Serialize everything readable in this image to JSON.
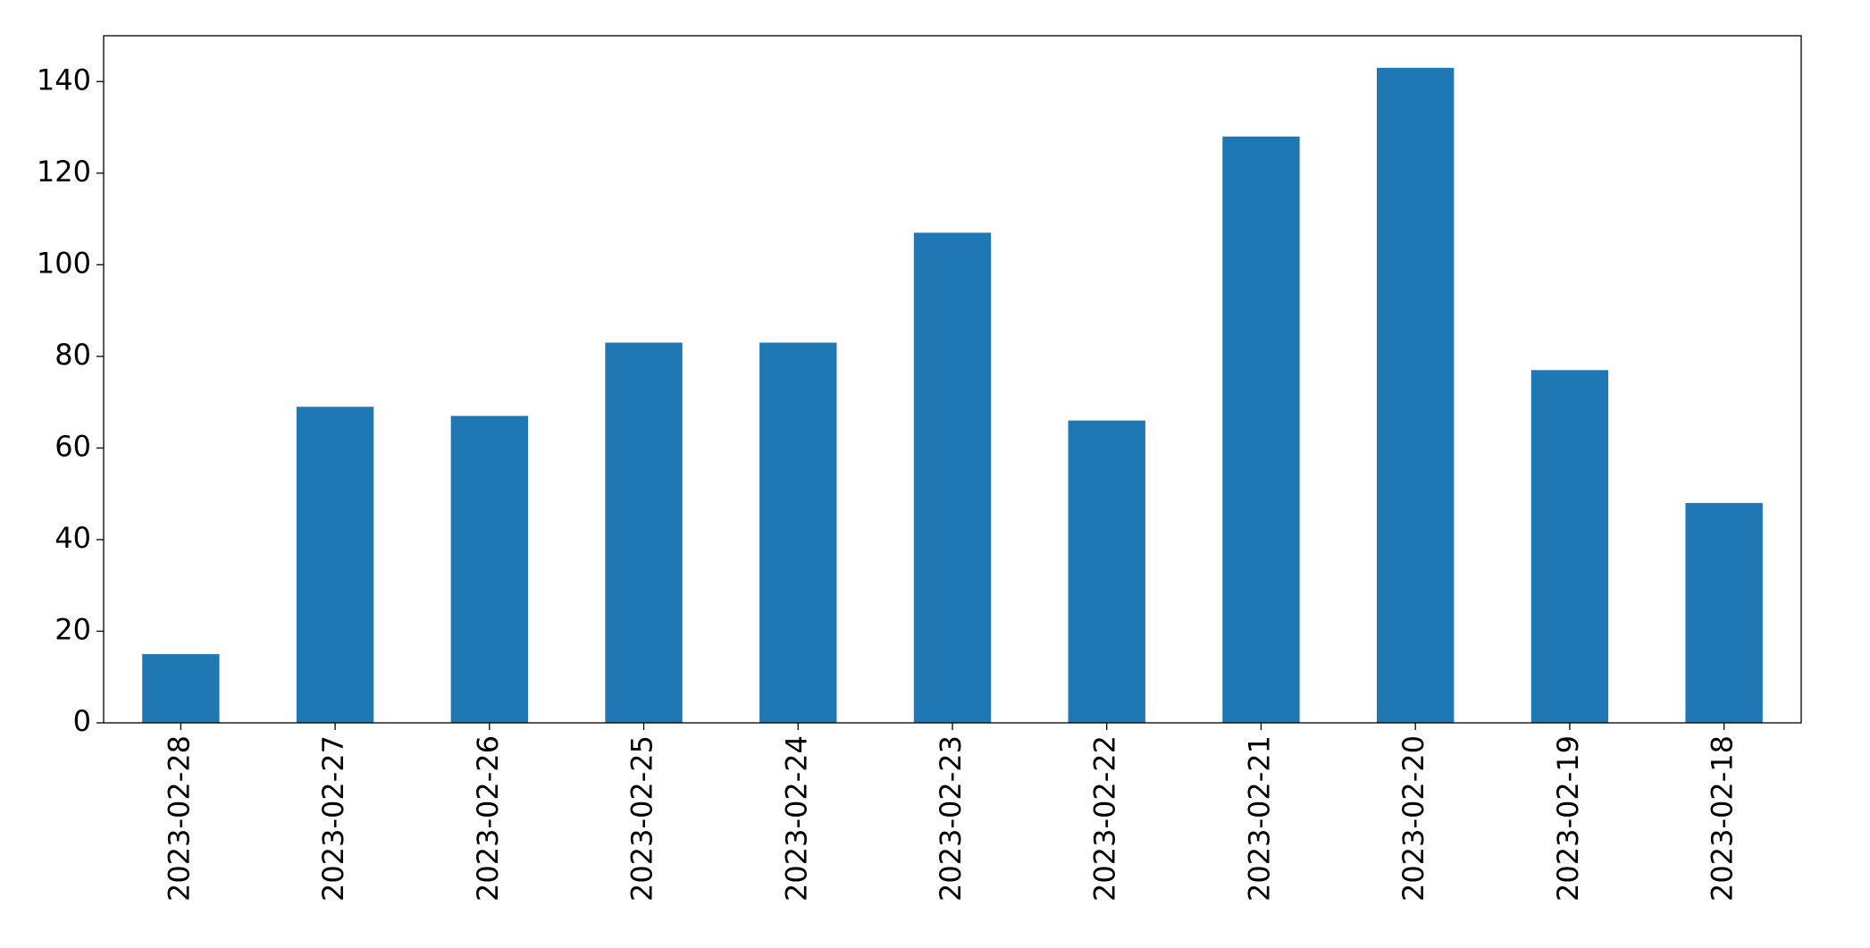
{
  "chart_data": {
    "type": "bar",
    "categories": [
      "2023-02-28",
      "2023-02-27",
      "2023-02-26",
      "2023-02-25",
      "2023-02-24",
      "2023-02-23",
      "2023-02-22",
      "2023-02-21",
      "2023-02-20",
      "2023-02-19",
      "2023-02-18"
    ],
    "values": [
      15,
      69,
      67,
      83,
      83,
      107,
      66,
      128,
      143,
      77,
      48
    ],
    "color": "#1f77b4",
    "ylim": [
      0,
      150
    ],
    "yticks": [
      0,
      20,
      40,
      60,
      80,
      100,
      120,
      140
    ],
    "grid": false
  }
}
